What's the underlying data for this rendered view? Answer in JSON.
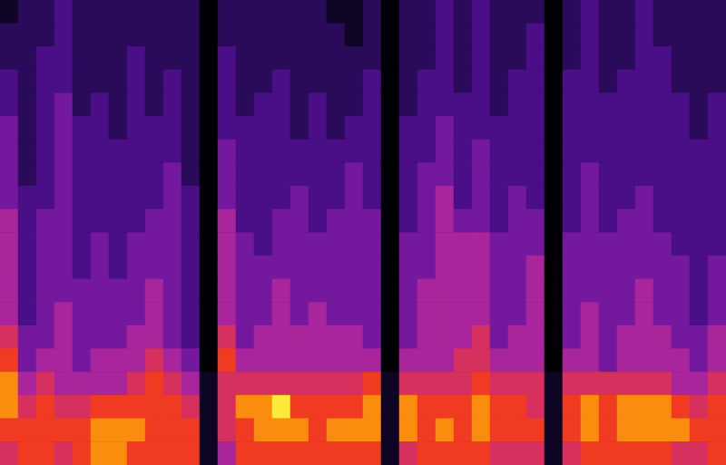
{
  "chart_data": {
    "type": "heatmap",
    "tick_labels": false,
    "value_range": [
      0,
      9
    ],
    "cells": [
      [
        1,
        2,
        2,
        3,
        2,
        2,
        2,
        2,
        2,
        2,
        2,
        0,
        2,
        2,
        2,
        2,
        2,
        2,
        1,
        1,
        2,
        0,
        2,
        2,
        3,
        2,
        3,
        2,
        2,
        2,
        0,
        2,
        3,
        2,
        2,
        3,
        2,
        2,
        2,
        2
      ],
      [
        2,
        2,
        2,
        3,
        2,
        2,
        2,
        2,
        2,
        2,
        2,
        0,
        2,
        2,
        2,
        2,
        2,
        2,
        2,
        1,
        2,
        0,
        2,
        2,
        3,
        2,
        3,
        2,
        2,
        3,
        0,
        2,
        3,
        2,
        2,
        3,
        2,
        2,
        2,
        2
      ],
      [
        2,
        2,
        3,
        3,
        2,
        2,
        2,
        3,
        2,
        2,
        2,
        0,
        3,
        2,
        2,
        2,
        2,
        2,
        2,
        2,
        2,
        0,
        2,
        2,
        3,
        2,
        3,
        2,
        2,
        3,
        0,
        2,
        3,
        2,
        2,
        3,
        3,
        2,
        2,
        2
      ],
      [
        3,
        2,
        3,
        3,
        2,
        2,
        2,
        3,
        2,
        3,
        2,
        0,
        3,
        2,
        2,
        3,
        2,
        2,
        2,
        2,
        3,
        0,
        2,
        3,
        3,
        2,
        3,
        2,
        3,
        3,
        0,
        3,
        3,
        2,
        3,
        3,
        3,
        2,
        2,
        2
      ],
      [
        3,
        2,
        3,
        4,
        2,
        3,
        2,
        3,
        2,
        3,
        2,
        0,
        3,
        2,
        3,
        3,
        2,
        3,
        2,
        2,
        3,
        0,
        2,
        3,
        3,
        3,
        3,
        2,
        3,
        3,
        0,
        3,
        3,
        3,
        3,
        3,
        3,
        3,
        2,
        3
      ],
      [
        4,
        2,
        3,
        4,
        3,
        3,
        2,
        3,
        3,
        3,
        2,
        0,
        3,
        3,
        3,
        3,
        2,
        3,
        2,
        3,
        3,
        0,
        3,
        3,
        4,
        3,
        3,
        3,
        3,
        3,
        0,
        3,
        3,
        3,
        3,
        3,
        3,
        3,
        2,
        3
      ],
      [
        4,
        2,
        3,
        4,
        3,
        3,
        3,
        3,
        3,
        3,
        2,
        0,
        4,
        3,
        3,
        3,
        3,
        3,
        3,
        3,
        3,
        0,
        3,
        3,
        4,
        3,
        4,
        3,
        3,
        3,
        0,
        3,
        3,
        3,
        3,
        3,
        3,
        3,
        3,
        3
      ],
      [
        4,
        2,
        3,
        4,
        3,
        3,
        3,
        3,
        3,
        4,
        2,
        0,
        4,
        3,
        3,
        3,
        3,
        3,
        3,
        4,
        3,
        0,
        3,
        4,
        4,
        3,
        4,
        3,
        3,
        3,
        0,
        3,
        4,
        3,
        3,
        3,
        3,
        3,
        3,
        3
      ],
      [
        4,
        3,
        3,
        4,
        3,
        3,
        3,
        3,
        3,
        4,
        3,
        0,
        4,
        3,
        3,
        3,
        4,
        3,
        3,
        4,
        3,
        0,
        3,
        4,
        5,
        3,
        4,
        3,
        4,
        3,
        0,
        3,
        4,
        3,
        3,
        4,
        3,
        3,
        3,
        3
      ],
      [
        5,
        3,
        4,
        4,
        3,
        3,
        3,
        3,
        4,
        4,
        3,
        0,
        5,
        3,
        3,
        4,
        4,
        3,
        4,
        4,
        4,
        0,
        3,
        4,
        5,
        4,
        4,
        3,
        4,
        4,
        0,
        3,
        4,
        3,
        4,
        4,
        3,
        3,
        3,
        3
      ],
      [
        5,
        3,
        4,
        4,
        3,
        4,
        3,
        4,
        4,
        4,
        3,
        0,
        5,
        4,
        3,
        4,
        4,
        4,
        4,
        4,
        4,
        0,
        4,
        4,
        5,
        5,
        5,
        4,
        4,
        4,
        0,
        4,
        4,
        4,
        4,
        4,
        4,
        3,
        3,
        3
      ],
      [
        5,
        3,
        4,
        4,
        3,
        4,
        3,
        4,
        4,
        4,
        3,
        0,
        5,
        4,
        4,
        4,
        4,
        4,
        4,
        4,
        4,
        0,
        4,
        4,
        5,
        5,
        5,
        4,
        4,
        5,
        0,
        4,
        4,
        4,
        4,
        4,
        4,
        4,
        3,
        4
      ],
      [
        5,
        3,
        4,
        4,
        4,
        4,
        4,
        4,
        5,
        4,
        3,
        0,
        5,
        4,
        4,
        5,
        4,
        4,
        4,
        4,
        4,
        0,
        4,
        5,
        5,
        5,
        5,
        4,
        4,
        5,
        0,
        4,
        4,
        4,
        4,
        5,
        4,
        4,
        3,
        4
      ],
      [
        5,
        3,
        4,
        5,
        4,
        4,
        4,
        4,
        5,
        4,
        3,
        0,
        5,
        4,
        4,
        5,
        4,
        5,
        4,
        4,
        4,
        0,
        4,
        5,
        5,
        5,
        5,
        4,
        4,
        5,
        0,
        4,
        5,
        4,
        4,
        5,
        4,
        4,
        3,
        4
      ],
      [
        6,
        4,
        4,
        5,
        4,
        4,
        4,
        5,
        5,
        4,
        3,
        0,
        6,
        4,
        5,
        5,
        5,
        5,
        5,
        5,
        4,
        0,
        4,
        5,
        5,
        5,
        6,
        4,
        5,
        5,
        0,
        4,
        5,
        4,
        5,
        5,
        5,
        4,
        4,
        5
      ],
      [
        7,
        4,
        5,
        5,
        4,
        5,
        5,
        5,
        6,
        5,
        4,
        0,
        7,
        5,
        5,
        5,
        5,
        5,
        5,
        5,
        5,
        0,
        5,
        5,
        5,
        6,
        6,
        5,
        5,
        5,
        0,
        5,
        5,
        4,
        5,
        5,
        5,
        5,
        4,
        5
      ],
      [
        8,
        5,
        6,
        5,
        5,
        5,
        5,
        6,
        7,
        6,
        5,
        1,
        6,
        6,
        6,
        6,
        6,
        6,
        6,
        6,
        7,
        1,
        6,
        6,
        6,
        6,
        7,
        6,
        6,
        6,
        1,
        6,
        6,
        6,
        6,
        6,
        6,
        5,
        5,
        6
      ],
      [
        8,
        6,
        7,
        6,
        6,
        7,
        7,
        7,
        7,
        7,
        6,
        1,
        6,
        8,
        8,
        9,
        7,
        7,
        7,
        7,
        8,
        1,
        8,
        7,
        7,
        7,
        8,
        7,
        7,
        6,
        1,
        7,
        8,
        7,
        8,
        8,
        8,
        7,
        6,
        7
      ],
      [
        7,
        7,
        7,
        7,
        7,
        8,
        8,
        8,
        7,
        7,
        7,
        1,
        6,
        7,
        8,
        8,
        8,
        7,
        8,
        8,
        8,
        1,
        8,
        7,
        8,
        7,
        8,
        7,
        7,
        7,
        1,
        7,
        8,
        7,
        8,
        8,
        8,
        8,
        7,
        7
      ],
      [
        6,
        7,
        7,
        6,
        7,
        8,
        8,
        7,
        7,
        7,
        7,
        1,
        5,
        7,
        7,
        7,
        7,
        7,
        7,
        7,
        7,
        1,
        6,
        7,
        7,
        7,
        7,
        6,
        6,
        6,
        1,
        6,
        7,
        7,
        7,
        7,
        7,
        6,
        6,
        7
      ]
    ]
  }
}
